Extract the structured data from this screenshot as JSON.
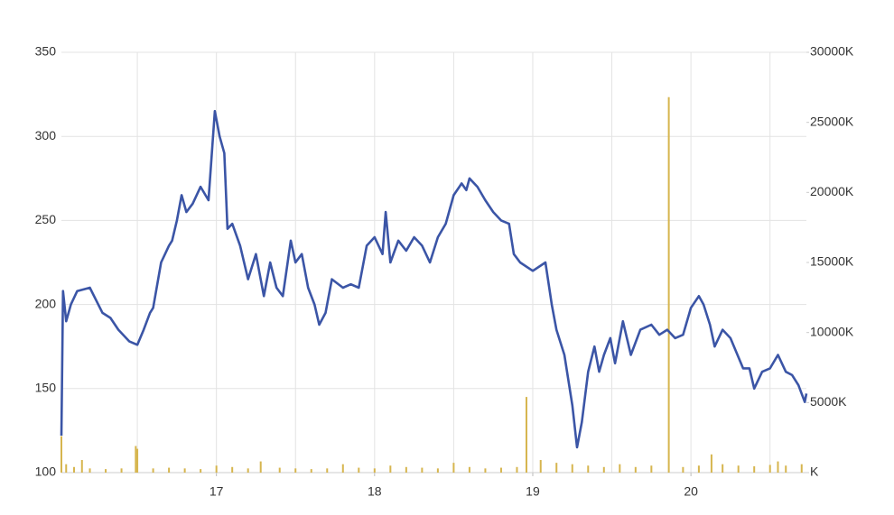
{
  "chart_data": {
    "type": "line",
    "xlim": [
      16.02,
      20.73
    ],
    "xticks": [
      17,
      18,
      19,
      20
    ],
    "xgrid": [
      16.5,
      17,
      17.5,
      18,
      18.5,
      19,
      19.5,
      20,
      20.5
    ],
    "ylim": [
      100,
      350
    ],
    "yticks": [
      100,
      150,
      200,
      250,
      300,
      350
    ],
    "y2lim": [
      0,
      30000
    ],
    "y2ticks": [
      {
        "value": 0,
        "label": "K"
      },
      {
        "value": 5000,
        "label": "5000K"
      },
      {
        "value": 10000,
        "label": "10000K"
      },
      {
        "value": 15000,
        "label": "15000K"
      },
      {
        "value": 20000,
        "label": "20000K"
      },
      {
        "value": 25000,
        "label": "25000K"
      },
      {
        "value": 30000,
        "label": "30000K"
      }
    ],
    "grid": true,
    "series": [
      {
        "color": "#3b55a6",
        "x": [
          16.02,
          16.03,
          16.05,
          16.08,
          16.12,
          16.2,
          16.28,
          16.33,
          16.38,
          16.45,
          16.5,
          16.54,
          16.58,
          16.6,
          16.65,
          16.7,
          16.72,
          16.75,
          16.78,
          16.81,
          16.85,
          16.9,
          16.95,
          16.99,
          17.02,
          17.05,
          17.07,
          17.1,
          17.15,
          17.2,
          17.25,
          17.3,
          17.34,
          17.38,
          17.42,
          17.47,
          17.5,
          17.54,
          17.58,
          17.62,
          17.65,
          17.69,
          17.73,
          17.8,
          17.85,
          17.9,
          17.95,
          18.0,
          18.05,
          18.07,
          18.1,
          18.15,
          18.2,
          18.25,
          18.3,
          18.35,
          18.4,
          18.45,
          18.5,
          18.55,
          18.58,
          18.6,
          18.65,
          18.7,
          18.75,
          18.8,
          18.85,
          18.88,
          18.92,
          19.0,
          19.08,
          19.12,
          19.15,
          19.2,
          19.25,
          19.28,
          19.31,
          19.35,
          19.39,
          19.42,
          19.45,
          19.49,
          19.52,
          19.57,
          19.6,
          19.62,
          19.68,
          19.75,
          19.8,
          19.85,
          19.9,
          19.95,
          20.0,
          20.05,
          20.08,
          20.12,
          20.15,
          20.2,
          20.25,
          20.33,
          20.37,
          20.4,
          20.45,
          20.5,
          20.55,
          20.6,
          20.64,
          20.68,
          20.72,
          20.73
        ],
        "values": [
          122,
          208,
          190,
          200,
          208,
          210,
          195,
          192,
          185,
          178,
          176,
          185,
          195,
          198,
          225,
          235,
          238,
          250,
          265,
          255,
          260,
          270,
          262,
          315,
          300,
          290,
          245,
          248,
          235,
          215,
          230,
          205,
          225,
          210,
          205,
          238,
          225,
          230,
          210,
          200,
          188,
          195,
          215,
          210,
          212,
          210,
          235,
          240,
          230,
          255,
          225,
          238,
          232,
          240,
          235,
          225,
          240,
          248,
          265,
          272,
          268,
          275,
          270,
          262,
          255,
          250,
          248,
          230,
          225,
          220,
          225,
          200,
          185,
          170,
          140,
          115,
          130,
          160,
          175,
          160,
          170,
          180,
          165,
          190,
          178,
          170,
          185,
          188,
          182,
          185,
          180,
          182,
          198,
          205,
          200,
          188,
          175,
          185,
          180,
          162,
          162,
          150,
          160,
          162,
          170,
          160,
          158,
          152,
          142,
          147
        ]
      },
      {
        "color": "#d6b54e",
        "axis": "y2",
        "type": "bar",
        "x": [
          16.02,
          16.05,
          16.1,
          16.15,
          16.2,
          16.3,
          16.4,
          16.49,
          16.5,
          16.6,
          16.7,
          16.8,
          16.9,
          17.0,
          17.1,
          17.2,
          17.28,
          17.4,
          17.5,
          17.6,
          17.7,
          17.8,
          17.9,
          18.0,
          18.1,
          18.2,
          18.3,
          18.4,
          18.5,
          18.6,
          18.7,
          18.8,
          18.9,
          18.96,
          19.05,
          19.15,
          19.25,
          19.35,
          19.45,
          19.55,
          19.65,
          19.75,
          19.86,
          19.95,
          20.05,
          20.13,
          20.2,
          20.3,
          20.4,
          20.5,
          20.55,
          20.6,
          20.7
        ],
        "values": [
          2600,
          600,
          400,
          900,
          300,
          250,
          300,
          1900,
          1700,
          300,
          350,
          300,
          250,
          500,
          400,
          300,
          800,
          350,
          300,
          250,
          300,
          600,
          350,
          300,
          500,
          400,
          350,
          300,
          700,
          400,
          300,
          350,
          400,
          5400,
          900,
          700,
          600,
          500,
          400,
          600,
          400,
          500,
          26800,
          400,
          500,
          1300,
          600,
          500,
          450,
          550,
          800,
          500,
          600
        ]
      }
    ]
  }
}
